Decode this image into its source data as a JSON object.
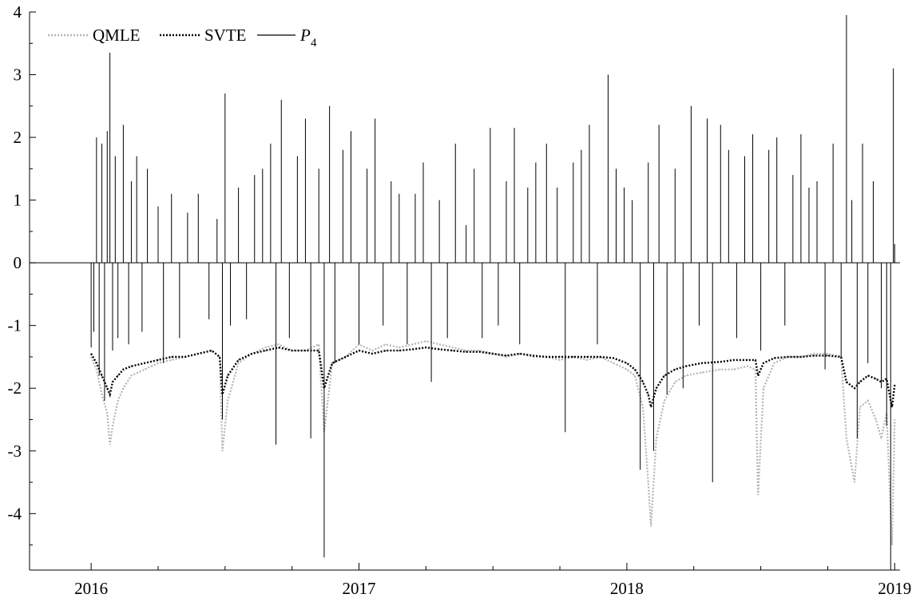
{
  "chart_data": {
    "type": "line",
    "title": "",
    "xlabel": "",
    "ylabel": "",
    "xlim": [
      2015.77,
      2019.02
    ],
    "ylim": [
      -4.9,
      4.0
    ],
    "grid": false,
    "legend_position": "top-left",
    "x_ticks": [
      {
        "value": 2016,
        "label": "2016"
      },
      {
        "value": 2017,
        "label": "2017"
      },
      {
        "value": 2018,
        "label": "2018"
      },
      {
        "value": 2019,
        "label": "2019"
      }
    ],
    "y_ticks": [
      {
        "value": 4,
        "label": "4"
      },
      {
        "value": 3,
        "label": "3"
      },
      {
        "value": 2,
        "label": "2"
      },
      {
        "value": 1,
        "label": "1"
      },
      {
        "value": 0,
        "label": "0"
      },
      {
        "value": -1,
        "label": "-1"
      },
      {
        "value": -2,
        "label": "-2"
      },
      {
        "value": -3,
        "label": "-3"
      },
      {
        "value": -4,
        "label": "-4"
      }
    ],
    "series": [
      {
        "name": "QMLE",
        "style": "dotted",
        "color": "#b4b4b4",
        "points": [
          [
            2016.0,
            -1.5
          ],
          [
            2016.02,
            -1.7
          ],
          [
            2016.04,
            -2.1
          ],
          [
            2016.06,
            -2.4
          ],
          [
            2016.07,
            -2.9
          ],
          [
            2016.08,
            -2.6
          ],
          [
            2016.1,
            -2.2
          ],
          [
            2016.12,
            -2.0
          ],
          [
            2016.15,
            -1.8
          ],
          [
            2016.2,
            -1.7
          ],
          [
            2016.25,
            -1.6
          ],
          [
            2016.3,
            -1.55
          ],
          [
            2016.35,
            -1.5
          ],
          [
            2016.4,
            -1.45
          ],
          [
            2016.45,
            -1.4
          ],
          [
            2016.48,
            -1.5
          ],
          [
            2016.49,
            -3.0
          ],
          [
            2016.51,
            -2.2
          ],
          [
            2016.55,
            -1.6
          ],
          [
            2016.6,
            -1.45
          ],
          [
            2016.65,
            -1.35
          ],
          [
            2016.7,
            -1.3
          ],
          [
            2016.75,
            -1.4
          ],
          [
            2016.8,
            -1.4
          ],
          [
            2016.85,
            -1.3
          ],
          [
            2016.87,
            -2.7
          ],
          [
            2016.9,
            -1.6
          ],
          [
            2016.95,
            -1.5
          ],
          [
            2017.0,
            -1.3
          ],
          [
            2017.05,
            -1.4
          ],
          [
            2017.1,
            -1.3
          ],
          [
            2017.15,
            -1.35
          ],
          [
            2017.2,
            -1.3
          ],
          [
            2017.25,
            -1.25
          ],
          [
            2017.3,
            -1.3
          ],
          [
            2017.35,
            -1.35
          ],
          [
            2017.4,
            -1.4
          ],
          [
            2017.45,
            -1.4
          ],
          [
            2017.5,
            -1.45
          ],
          [
            2017.55,
            -1.5
          ],
          [
            2017.6,
            -1.45
          ],
          [
            2017.65,
            -1.5
          ],
          [
            2017.7,
            -1.5
          ],
          [
            2017.75,
            -1.55
          ],
          [
            2017.8,
            -1.5
          ],
          [
            2017.85,
            -1.55
          ],
          [
            2017.9,
            -1.5
          ],
          [
            2017.95,
            -1.6
          ],
          [
            2018.0,
            -1.7
          ],
          [
            2018.03,
            -1.8
          ],
          [
            2018.06,
            -2.3
          ],
          [
            2018.08,
            -3.5
          ],
          [
            2018.09,
            -4.2
          ],
          [
            2018.11,
            -2.8
          ],
          [
            2018.14,
            -2.2
          ],
          [
            2018.18,
            -1.9
          ],
          [
            2018.22,
            -1.8
          ],
          [
            2018.28,
            -1.75
          ],
          [
            2018.35,
            -1.7
          ],
          [
            2018.4,
            -1.7
          ],
          [
            2018.45,
            -1.65
          ],
          [
            2018.48,
            -1.7
          ],
          [
            2018.49,
            -3.7
          ],
          [
            2018.51,
            -2.0
          ],
          [
            2018.55,
            -1.6
          ],
          [
            2018.6,
            -1.5
          ],
          [
            2018.65,
            -1.5
          ],
          [
            2018.7,
            -1.45
          ],
          [
            2018.75,
            -1.45
          ],
          [
            2018.8,
            -1.5
          ],
          [
            2018.82,
            -2.8
          ],
          [
            2018.85,
            -3.5
          ],
          [
            2018.87,
            -2.3
          ],
          [
            2018.9,
            -2.2
          ],
          [
            2018.93,
            -2.5
          ],
          [
            2018.95,
            -2.8
          ],
          [
            2018.97,
            -2.4
          ],
          [
            2018.99,
            -4.5
          ],
          [
            2019.0,
            -2.5
          ]
        ]
      },
      {
        "name": "SVTE",
        "style": "dotted",
        "color": "#000000",
        "points": [
          [
            2016.0,
            -1.45
          ],
          [
            2016.02,
            -1.6
          ],
          [
            2016.04,
            -1.8
          ],
          [
            2016.06,
            -2.0
          ],
          [
            2016.07,
            -2.1
          ],
          [
            2016.08,
            -1.9
          ],
          [
            2016.1,
            -1.8
          ],
          [
            2016.12,
            -1.7
          ],
          [
            2016.15,
            -1.65
          ],
          [
            2016.2,
            -1.6
          ],
          [
            2016.25,
            -1.55
          ],
          [
            2016.3,
            -1.5
          ],
          [
            2016.35,
            -1.5
          ],
          [
            2016.4,
            -1.45
          ],
          [
            2016.45,
            -1.4
          ],
          [
            2016.48,
            -1.5
          ],
          [
            2016.49,
            -2.1
          ],
          [
            2016.51,
            -1.8
          ],
          [
            2016.55,
            -1.55
          ],
          [
            2016.6,
            -1.45
          ],
          [
            2016.65,
            -1.4
          ],
          [
            2016.7,
            -1.35
          ],
          [
            2016.75,
            -1.4
          ],
          [
            2016.8,
            -1.4
          ],
          [
            2016.85,
            -1.4
          ],
          [
            2016.87,
            -2.0
          ],
          [
            2016.9,
            -1.6
          ],
          [
            2016.95,
            -1.5
          ],
          [
            2017.0,
            -1.4
          ],
          [
            2017.05,
            -1.45
          ],
          [
            2017.1,
            -1.4
          ],
          [
            2017.15,
            -1.4
          ],
          [
            2017.2,
            -1.38
          ],
          [
            2017.25,
            -1.35
          ],
          [
            2017.3,
            -1.38
          ],
          [
            2017.35,
            -1.4
          ],
          [
            2017.4,
            -1.42
          ],
          [
            2017.45,
            -1.42
          ],
          [
            2017.5,
            -1.45
          ],
          [
            2017.55,
            -1.48
          ],
          [
            2017.6,
            -1.45
          ],
          [
            2017.65,
            -1.48
          ],
          [
            2017.7,
            -1.5
          ],
          [
            2017.75,
            -1.5
          ],
          [
            2017.8,
            -1.5
          ],
          [
            2017.85,
            -1.5
          ],
          [
            2017.9,
            -1.5
          ],
          [
            2017.95,
            -1.52
          ],
          [
            2018.0,
            -1.6
          ],
          [
            2018.03,
            -1.7
          ],
          [
            2018.06,
            -1.9
          ],
          [
            2018.08,
            -2.1
          ],
          [
            2018.09,
            -2.3
          ],
          [
            2018.11,
            -2.0
          ],
          [
            2018.14,
            -1.8
          ],
          [
            2018.18,
            -1.7
          ],
          [
            2018.22,
            -1.65
          ],
          [
            2018.28,
            -1.6
          ],
          [
            2018.35,
            -1.58
          ],
          [
            2018.4,
            -1.55
          ],
          [
            2018.45,
            -1.55
          ],
          [
            2018.48,
            -1.55
          ],
          [
            2018.49,
            -1.8
          ],
          [
            2018.51,
            -1.6
          ],
          [
            2018.55,
            -1.52
          ],
          [
            2018.6,
            -1.5
          ],
          [
            2018.65,
            -1.5
          ],
          [
            2018.7,
            -1.48
          ],
          [
            2018.75,
            -1.48
          ],
          [
            2018.8,
            -1.5
          ],
          [
            2018.82,
            -1.9
          ],
          [
            2018.85,
            -2.0
          ],
          [
            2018.87,
            -1.9
          ],
          [
            2018.9,
            -1.8
          ],
          [
            2018.93,
            -1.85
          ],
          [
            2018.95,
            -1.9
          ],
          [
            2018.97,
            -1.85
          ],
          [
            2018.99,
            -2.3
          ],
          [
            2019.0,
            -1.95
          ]
        ]
      },
      {
        "name": "P4",
        "style": "solid",
        "color": "#000000",
        "spikes": [
          [
            2016.0,
            -1.35
          ],
          [
            2016.01,
            -1.1
          ],
          [
            2016.02,
            2.0
          ],
          [
            2016.03,
            -1.8
          ],
          [
            2016.04,
            1.9
          ],
          [
            2016.05,
            -2.2
          ],
          [
            2016.06,
            2.1
          ],
          [
            2016.07,
            3.35
          ],
          [
            2016.08,
            -1.4
          ],
          [
            2016.09,
            1.7
          ],
          [
            2016.1,
            -1.2
          ],
          [
            2016.12,
            2.2
          ],
          [
            2016.14,
            -1.3
          ],
          [
            2016.15,
            1.3
          ],
          [
            2016.17,
            1.7
          ],
          [
            2016.19,
            -1.1
          ],
          [
            2016.21,
            1.5
          ],
          [
            2016.25,
            0.9
          ],
          [
            2016.27,
            -1.6
          ],
          [
            2016.3,
            1.1
          ],
          [
            2016.33,
            -1.2
          ],
          [
            2016.36,
            0.8
          ],
          [
            2016.4,
            1.1
          ],
          [
            2016.44,
            -0.9
          ],
          [
            2016.47,
            0.7
          ],
          [
            2016.49,
            -2.5
          ],
          [
            2016.5,
            2.7
          ],
          [
            2016.52,
            -1.0
          ],
          [
            2016.55,
            1.2
          ],
          [
            2016.58,
            -0.9
          ],
          [
            2016.61,
            1.4
          ],
          [
            2016.64,
            1.5
          ],
          [
            2016.67,
            1.9
          ],
          [
            2016.69,
            -2.9
          ],
          [
            2016.71,
            2.6
          ],
          [
            2016.74,
            -1.2
          ],
          [
            2016.77,
            1.7
          ],
          [
            2016.8,
            2.3
          ],
          [
            2016.82,
            -2.8
          ],
          [
            2016.85,
            1.5
          ],
          [
            2016.87,
            -4.7
          ],
          [
            2016.89,
            2.5
          ],
          [
            2016.91,
            -1.6
          ],
          [
            2016.94,
            1.8
          ],
          [
            2016.97,
            2.1
          ],
          [
            2017.0,
            -1.3
          ],
          [
            2017.03,
            1.5
          ],
          [
            2017.06,
            2.3
          ],
          [
            2017.09,
            -1.0
          ],
          [
            2017.12,
            1.3
          ],
          [
            2017.15,
            1.1
          ],
          [
            2017.18,
            -1.3
          ],
          [
            2017.21,
            1.1
          ],
          [
            2017.24,
            1.6
          ],
          [
            2017.27,
            -1.9
          ],
          [
            2017.3,
            1.0
          ],
          [
            2017.33,
            -1.2
          ],
          [
            2017.36,
            1.9
          ],
          [
            2017.4,
            0.6
          ],
          [
            2017.43,
            1.5
          ],
          [
            2017.46,
            -1.2
          ],
          [
            2017.49,
            2.15
          ],
          [
            2017.52,
            -1.0
          ],
          [
            2017.55,
            1.3
          ],
          [
            2017.58,
            2.15
          ],
          [
            2017.6,
            -1.3
          ],
          [
            2017.63,
            1.2
          ],
          [
            2017.66,
            1.6
          ],
          [
            2017.7,
            1.9
          ],
          [
            2017.74,
            1.2
          ],
          [
            2017.77,
            -2.7
          ],
          [
            2017.8,
            1.6
          ],
          [
            2017.83,
            1.8
          ],
          [
            2017.86,
            2.2
          ],
          [
            2017.89,
            -1.3
          ],
          [
            2017.93,
            3.0
          ],
          [
            2017.96,
            1.5
          ],
          [
            2017.99,
            1.2
          ],
          [
            2018.02,
            1.0
          ],
          [
            2018.05,
            -3.3
          ],
          [
            2018.08,
            1.6
          ],
          [
            2018.1,
            -3.0
          ],
          [
            2018.12,
            2.2
          ],
          [
            2018.15,
            -2.1
          ],
          [
            2018.18,
            1.5
          ],
          [
            2018.21,
            -2.0
          ],
          [
            2018.24,
            2.5
          ],
          [
            2018.27,
            -1.0
          ],
          [
            2018.3,
            2.3
          ],
          [
            2018.32,
            -3.5
          ],
          [
            2018.35,
            2.2
          ],
          [
            2018.38,
            1.8
          ],
          [
            2018.41,
            -1.2
          ],
          [
            2018.44,
            1.7
          ],
          [
            2018.47,
            2.05
          ],
          [
            2018.5,
            -1.4
          ],
          [
            2018.53,
            1.8
          ],
          [
            2018.56,
            2.0
          ],
          [
            2018.59,
            -1.0
          ],
          [
            2018.62,
            1.4
          ],
          [
            2018.65,
            2.05
          ],
          [
            2018.68,
            1.2
          ],
          [
            2018.71,
            1.3
          ],
          [
            2018.74,
            -1.7
          ],
          [
            2018.77,
            1.9
          ],
          [
            2018.8,
            -1.5
          ],
          [
            2018.82,
            3.95
          ],
          [
            2018.84,
            1.0
          ],
          [
            2018.86,
            -2.8
          ],
          [
            2018.88,
            1.9
          ],
          [
            2018.9,
            -1.6
          ],
          [
            2018.92,
            1.3
          ],
          [
            2018.95,
            -2.0
          ],
          [
            2018.97,
            -2.6
          ],
          [
            2018.985,
            -4.9
          ],
          [
            2018.995,
            3.1
          ],
          [
            2019.0,
            0.3
          ]
        ]
      }
    ]
  },
  "legend": [
    {
      "label": "QMLE"
    },
    {
      "label": "SVTE"
    },
    {
      "label": "P",
      "subscript": "4"
    }
  ],
  "colors": {
    "qmle": "#b4b4b4",
    "svte": "#000000",
    "p4": "#000000",
    "axis": "#000000"
  }
}
